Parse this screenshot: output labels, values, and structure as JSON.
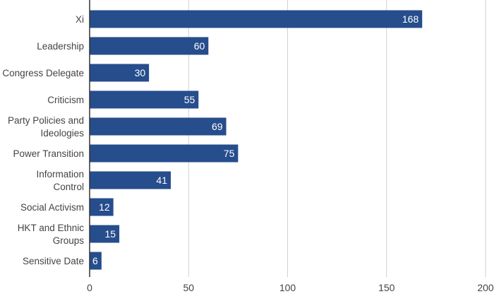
{
  "chart_data": {
    "type": "bar",
    "orientation": "horizontal",
    "title": "",
    "xlabel": "",
    "ylabel": "",
    "categories": [
      [
        "Xi"
      ],
      [
        "Leadership"
      ],
      [
        "Congress Delegate"
      ],
      [
        "Criticism"
      ],
      [
        "Party Policies and",
        "Ideologies"
      ],
      [
        "Power Transition"
      ],
      [
        "Information",
        "Control"
      ],
      [
        "Social Activism"
      ],
      [
        "HKT and Ethnic",
        "Groups"
      ],
      [
        "Sensitive Date"
      ]
    ],
    "values": [
      168,
      60,
      30,
      55,
      69,
      75,
      41,
      12,
      15,
      6
    ],
    "xlim": [
      0,
      200
    ],
    "xticks": [
      0,
      50,
      100,
      150,
      200
    ],
    "grid": true,
    "legend": "none",
    "data_labels": true,
    "colors": {
      "bar": "#264d8c",
      "grid": "#d0d0d0",
      "axis": "#333333",
      "text": "#444444",
      "value_text": "#ffffff"
    }
  }
}
